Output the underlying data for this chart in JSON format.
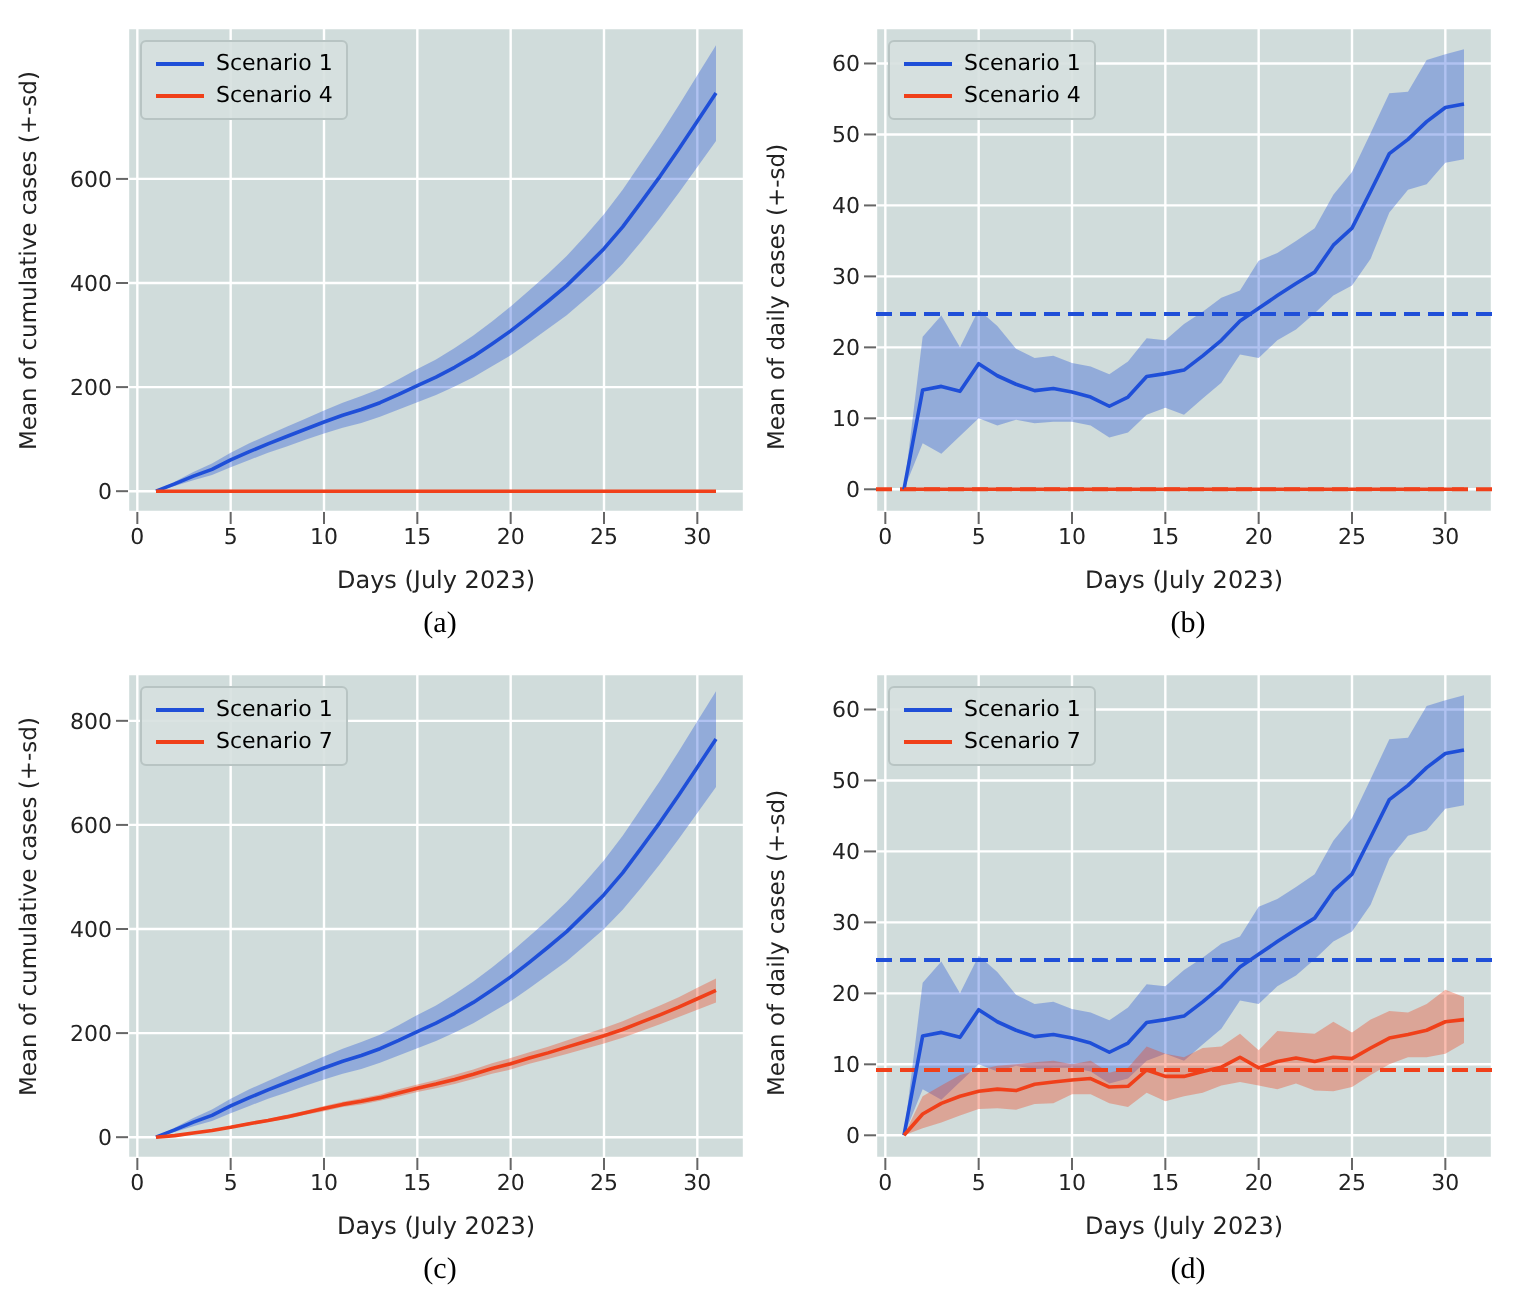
{
  "chart_data": [
    {
      "type": "line",
      "xlabel": "Days (July 2023)",
      "ylabel": "Mean of cumulative cases (+-sd)",
      "annotations": [
        "(a)"
      ],
      "x": [
        1,
        2,
        3,
        4,
        5,
        6,
        7,
        8,
        9,
        10,
        11,
        12,
        13,
        14,
        15,
        16,
        17,
        18,
        19,
        20,
        21,
        22,
        23,
        24,
        25,
        26,
        27,
        28,
        29,
        30,
        31
      ],
      "xlim": [
        -0.5,
        32.5
      ],
      "xticks": [
        0,
        5,
        10,
        15,
        20,
        25,
        30
      ],
      "ylim": [
        -40,
        890
      ],
      "yticks": [
        0,
        200,
        400,
        600
      ],
      "grid": true,
      "legend": "top left",
      "series": [
        {
          "name": "Scenario 1",
          "color": "#1f4fd8",
          "values": [
            0,
            14,
            29,
            42,
            60,
            76,
            91,
            105,
            119,
            133,
            146,
            157,
            170,
            186,
            203,
            219,
            238,
            259,
            283,
            308,
            336,
            365,
            395,
            430,
            466,
            508,
            556,
            605,
            657,
            711,
            765
          ],
          "lower": [
            0,
            10,
            21,
            31,
            46,
            60,
            74,
            86,
            99,
            111,
            122,
            131,
            143,
            157,
            171,
            185,
            201,
            219,
            240,
            261,
            286,
            312,
            338,
            369,
            400,
            437,
            480,
            525,
            573,
            623,
            673
          ],
          "upper": [
            0,
            18,
            37,
            53,
            74,
            92,
            108,
            124,
            139,
            155,
            170,
            183,
            197,
            215,
            235,
            253,
            275,
            299,
            326,
            355,
            386,
            418,
            452,
            491,
            532,
            579,
            632,
            685,
            741,
            799,
            857
          ]
        },
        {
          "name": "Scenario 4",
          "color": "#f0401a",
          "values": [
            0,
            0,
            0,
            0,
            0,
            0,
            0,
            0,
            0,
            0,
            0,
            0,
            0,
            0,
            0,
            0,
            0,
            0,
            0,
            0,
            0,
            0,
            0,
            0,
            0,
            0,
            0,
            0,
            0,
            0,
            0
          ]
        }
      ]
    },
    {
      "type": "line",
      "xlabel": "Days (July 2023)",
      "ylabel": "Mean of daily cases (+-sd)",
      "annotations": [
        "(b)"
      ],
      "x": [
        1,
        2,
        3,
        4,
        5,
        6,
        7,
        8,
        9,
        10,
        11,
        12,
        13,
        14,
        15,
        16,
        17,
        18,
        19,
        20,
        21,
        22,
        23,
        24,
        25,
        26,
        27,
        28,
        29,
        30,
        31
      ],
      "xlim": [
        -0.5,
        32.5
      ],
      "xticks": [
        0,
        5,
        10,
        15,
        20,
        25,
        30
      ],
      "ylim": [
        -3.2,
        65
      ],
      "yticks": [
        0,
        10,
        20,
        30,
        40,
        50,
        60
      ],
      "grid": true,
      "legend": "top left",
      "series": [
        {
          "name": "Scenario 1",
          "color": "#1f4fd8",
          "values": [
            0,
            14,
            14.5,
            13.8,
            17.7,
            16,
            14.8,
            13.9,
            14.2,
            13.7,
            13,
            11.7,
            13,
            15.9,
            16.3,
            16.8,
            18.8,
            21,
            23.7,
            25.5,
            27.3,
            29,
            30.6,
            34.4,
            36.8,
            42,
            47.3,
            49.3,
            51.8,
            53.8,
            54.3
          ],
          "lower": [
            0,
            6.5,
            5,
            7.5,
            10,
            9,
            9.8,
            9.3,
            9.5,
            9.5,
            9,
            7.3,
            8,
            10.5,
            11.5,
            10.5,
            12.8,
            15,
            19,
            18.5,
            21,
            22.5,
            24.8,
            27.3,
            28.7,
            32.5,
            39,
            42.2,
            43,
            46,
            46.5
          ],
          "upper": [
            0,
            21.5,
            24.5,
            20,
            25.3,
            23,
            19.8,
            18.5,
            18.8,
            17.8,
            17.3,
            16.2,
            18,
            21.3,
            21,
            23.3,
            25,
            27,
            28,
            32.2,
            33.3,
            35,
            36.8,
            41.5,
            44.7,
            50.2,
            55.8,
            56,
            60.5,
            61.3,
            62
          ]
        },
        {
          "name": "Scenario 4",
          "color": "#f0401a",
          "values": [
            0,
            0,
            0,
            0,
            0,
            0,
            0,
            0,
            0,
            0,
            0,
            0,
            0,
            0,
            0,
            0,
            0,
            0,
            0,
            0,
            0,
            0,
            0,
            0,
            0,
            0,
            0,
            0,
            0,
            0,
            0
          ]
        }
      ],
      "ref_lines": [
        {
          "axis": "y",
          "value": 24.7,
          "color": "#1f4fd8",
          "line_style": "dashed"
        },
        {
          "axis": "y",
          "value": 0,
          "color": "#f0401a",
          "line_style": "dashed"
        }
      ]
    },
    {
      "type": "line",
      "xlabel": "Days (July 2023)",
      "ylabel": "Mean of cumulative cases (+-sd)",
      "annotations": [
        "(c)"
      ],
      "x": [
        1,
        2,
        3,
        4,
        5,
        6,
        7,
        8,
        9,
        10,
        11,
        12,
        13,
        14,
        15,
        16,
        17,
        18,
        19,
        20,
        21,
        22,
        23,
        24,
        25,
        26,
        27,
        28,
        29,
        30,
        31
      ],
      "xlim": [
        -0.5,
        32.5
      ],
      "xticks": [
        0,
        5,
        10,
        15,
        20,
        25,
        30
      ],
      "ylim": [
        -40,
        890
      ],
      "yticks": [
        0,
        200,
        400,
        600,
        800
      ],
      "grid": true,
      "legend": "top left",
      "series": [
        {
          "name": "Scenario 1",
          "color": "#1f4fd8",
          "values": [
            0,
            14,
            29,
            42,
            60,
            76,
            91,
            105,
            119,
            133,
            146,
            157,
            170,
            186,
            203,
            219,
            238,
            259,
            283,
            308,
            336,
            365,
            395,
            430,
            466,
            508,
            556,
            605,
            657,
            711,
            765
          ],
          "lower": [
            0,
            10,
            21,
            31,
            46,
            60,
            74,
            86,
            99,
            111,
            122,
            131,
            143,
            157,
            171,
            185,
            201,
            219,
            240,
            261,
            286,
            312,
            338,
            369,
            400,
            437,
            480,
            525,
            573,
            623,
            673
          ],
          "upper": [
            0,
            18,
            37,
            53,
            74,
            92,
            108,
            124,
            139,
            155,
            170,
            183,
            197,
            215,
            235,
            253,
            275,
            299,
            326,
            355,
            386,
            418,
            452,
            491,
            532,
            579,
            632,
            685,
            741,
            799,
            857
          ]
        },
        {
          "name": "Scenario 7",
          "color": "#f0401a",
          "values": [
            0,
            3,
            8,
            13,
            19,
            26,
            32,
            39,
            47,
            55,
            63,
            69,
            76,
            85,
            94,
            102,
            111,
            121,
            132,
            141,
            152,
            162,
            173,
            184,
            195,
            207,
            221,
            235,
            250,
            266,
            282
          ],
          "lower": [
            0,
            2,
            7,
            11,
            17,
            23,
            29,
            35,
            43,
            50,
            58,
            63,
            70,
            78,
            87,
            94,
            102,
            112,
            122,
            130,
            141,
            150,
            160,
            170,
            180,
            191,
            204,
            217,
            231,
            245,
            259
          ],
          "upper": [
            0,
            4,
            9,
            15,
            21,
            29,
            35,
            43,
            51,
            60,
            68,
            75,
            82,
            92,
            101,
            110,
            120,
            130,
            142,
            152,
            163,
            174,
            186,
            198,
            210,
            223,
            238,
            253,
            269,
            287,
            305
          ]
        }
      ]
    },
    {
      "type": "line",
      "xlabel": "Days (July 2023)",
      "ylabel": "Mean of daily cases (+-sd)",
      "annotations": [
        "(d)"
      ],
      "x": [
        1,
        2,
        3,
        4,
        5,
        6,
        7,
        8,
        9,
        10,
        11,
        12,
        13,
        14,
        15,
        16,
        17,
        18,
        19,
        20,
        21,
        22,
        23,
        24,
        25,
        26,
        27,
        28,
        29,
        30,
        31
      ],
      "xlim": [
        -0.5,
        32.5
      ],
      "xticks": [
        0,
        5,
        10,
        15,
        20,
        25,
        30
      ],
      "ylim": [
        -3.2,
        65
      ],
      "yticks": [
        0,
        10,
        20,
        30,
        40,
        50,
        60
      ],
      "grid": true,
      "legend": "top left",
      "series": [
        {
          "name": "Scenario 1",
          "color": "#1f4fd8",
          "values": [
            0,
            14,
            14.5,
            13.8,
            17.7,
            16,
            14.8,
            13.9,
            14.2,
            13.7,
            13,
            11.7,
            13,
            15.9,
            16.3,
            16.8,
            18.8,
            21,
            23.7,
            25.5,
            27.3,
            29,
            30.6,
            34.4,
            36.8,
            42,
            47.3,
            49.3,
            51.8,
            53.8,
            54.3
          ],
          "lower": [
            0,
            6.5,
            5,
            7.5,
            10,
            9,
            9.8,
            9.3,
            9.5,
            9.5,
            9,
            7.3,
            8,
            10.5,
            11.5,
            10.5,
            12.8,
            15,
            19,
            18.5,
            21,
            22.5,
            24.8,
            27.3,
            28.7,
            32.5,
            39,
            42.2,
            43,
            46,
            46.5
          ],
          "upper": [
            0,
            21.5,
            24.5,
            20,
            25.3,
            23,
            19.8,
            18.5,
            18.8,
            17.8,
            17.3,
            16.2,
            18,
            21.3,
            21,
            23.3,
            25,
            27,
            28,
            32.2,
            33.3,
            35,
            36.8,
            41.5,
            44.7,
            50.2,
            55.8,
            56,
            60.5,
            61.3,
            62
          ]
        },
        {
          "name": "Scenario 7",
          "color": "#f0401a",
          "values": [
            0,
            3,
            4.5,
            5.5,
            6.2,
            6.5,
            6.3,
            7.2,
            7.5,
            7.8,
            8,
            6.8,
            6.9,
            9.2,
            8.3,
            8.3,
            9,
            9.6,
            11,
            9.5,
            10.4,
            10.9,
            10.4,
            11,
            10.8,
            12.3,
            13.7,
            14.2,
            14.8,
            16,
            16.3
          ],
          "lower": [
            0,
            1,
            1.8,
            2.8,
            3.7,
            3.8,
            3.6,
            4.4,
            4.5,
            5.8,
            5.8,
            4.5,
            4,
            6,
            4.8,
            5.5,
            6,
            7,
            7.5,
            7,
            6.5,
            7.3,
            6.3,
            6.2,
            6.8,
            8.5,
            10,
            11,
            11,
            11.5,
            13
          ],
          "upper": [
            0,
            5.5,
            7,
            8.5,
            9.2,
            9.8,
            10,
            10.3,
            10.5,
            10,
            10.5,
            8.8,
            9.5,
            12.5,
            11.5,
            11,
            12.3,
            12.5,
            14.3,
            12,
            14.7,
            14.5,
            14.3,
            16,
            14.5,
            16.3,
            17.5,
            17.3,
            18.5,
            20.5,
            19.5
          ]
        }
      ],
      "ref_lines": [
        {
          "axis": "y",
          "value": 24.7,
          "color": "#1f4fd8",
          "line_style": "dashed"
        },
        {
          "axis": "y",
          "value": 9.2,
          "color": "#f0401a",
          "line_style": "dashed"
        }
      ]
    }
  ]
}
